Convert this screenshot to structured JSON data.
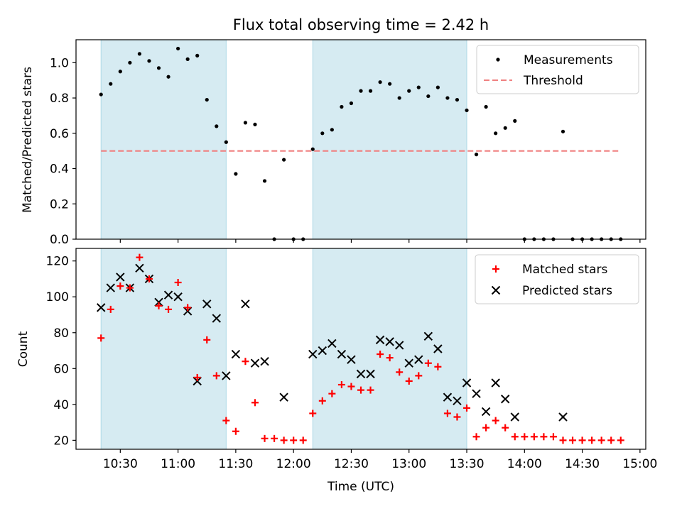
{
  "figure": {
    "title": "Flux total observing time = 2.42 h",
    "xlabel": "Time (UTC)"
  },
  "colors": {
    "shade": "#add8e6",
    "shade_opacity": 0.5,
    "threshold": "#f08080",
    "matched": "#ff0000",
    "predicted": "#000000",
    "measurement": "#000000"
  },
  "chart_data": [
    {
      "type": "scatter",
      "panel": "top",
      "ylabel": "Matched/Predicted stars",
      "xlim": [
        "10:07",
        "15:03"
      ],
      "ylim": [
        0,
        1.13
      ],
      "yticks": [
        0.0,
        0.2,
        0.4,
        0.6,
        0.8,
        1.0
      ],
      "ytick_labels": [
        "0.0",
        "0.2",
        "0.4",
        "0.6",
        "0.8",
        "1.0"
      ],
      "legend_position": "top-right",
      "shaded_intervals": [
        [
          "10:20",
          "11:25"
        ],
        [
          "12:10",
          "13:30"
        ]
      ],
      "series": [
        {
          "name": "Measurements",
          "kind": "points",
          "x": [
            "10:20",
            "10:25",
            "10:30",
            "10:35",
            "10:40",
            "10:45",
            "10:50",
            "10:55",
            "11:00",
            "11:05",
            "11:10",
            "11:15",
            "11:20",
            "11:25",
            "11:30",
            "11:35",
            "11:40",
            "11:45",
            "11:50",
            "11:55",
            "12:00",
            "12:05",
            "12:10",
            "12:15",
            "12:20",
            "12:25",
            "12:30",
            "12:35",
            "12:40",
            "12:45",
            "12:50",
            "12:55",
            "13:00",
            "13:05",
            "13:10",
            "13:15",
            "13:20",
            "13:25",
            "13:30",
            "13:35",
            "13:40",
            "13:45",
            "13:50",
            "13:55",
            "14:00",
            "14:05",
            "14:10",
            "14:15",
            "14:20",
            "14:25",
            "14:30",
            "14:35",
            "14:40",
            "14:45",
            "14:50"
          ],
          "y": [
            0.82,
            0.88,
            0.95,
            1.0,
            1.05,
            1.01,
            0.97,
            0.92,
            1.08,
            1.02,
            1.04,
            0.79,
            0.64,
            0.55,
            0.37,
            0.66,
            0.65,
            0.33,
            0.0,
            0.45,
            0.0,
            0.0,
            0.51,
            0.6,
            0.62,
            0.75,
            0.77,
            0.84,
            0.84,
            0.89,
            0.88,
            0.8,
            0.84,
            0.86,
            0.81,
            0.86,
            0.8,
            0.79,
            0.73,
            0.48,
            0.75,
            0.6,
            0.63,
            0.67,
            0.0,
            0.0,
            0.0,
            0.0,
            0.61,
            0.0,
            0.0,
            0.0,
            0.0,
            0.0,
            0.0
          ]
        },
        {
          "name": "Threshold",
          "kind": "dashed-line",
          "x": [
            "10:20",
            "14:50"
          ],
          "y": [
            0.5,
            0.5
          ]
        }
      ]
    },
    {
      "type": "scatter",
      "panel": "bottom",
      "ylabel": "Count",
      "xlim": [
        "10:07",
        "15:03"
      ],
      "ylim": [
        15,
        127
      ],
      "yticks": [
        20,
        40,
        60,
        80,
        100,
        120
      ],
      "ytick_labels": [
        "20",
        "40",
        "60",
        "80",
        "100",
        "120"
      ],
      "xticks": [
        "10:30",
        "11:00",
        "11:30",
        "12:00",
        "12:30",
        "13:00",
        "13:30",
        "14:00",
        "14:30",
        "15:00"
      ],
      "xtick_labels": [
        "10:30",
        "11:00",
        "11:30",
        "12:00",
        "12:30",
        "13:00",
        "13:30",
        "14:00",
        "14:30",
        "15:00"
      ],
      "legend_position": "top-right",
      "shaded_intervals": [
        [
          "10:20",
          "11:25"
        ],
        [
          "12:10",
          "13:30"
        ]
      ],
      "series": [
        {
          "name": "Matched stars",
          "marker": "plus",
          "x": [
            "10:20",
            "10:25",
            "10:30",
            "10:35",
            "10:40",
            "10:45",
            "10:50",
            "10:55",
            "11:00",
            "11:05",
            "11:10",
            "11:15",
            "11:20",
            "11:25",
            "11:30",
            "11:35",
            "11:40",
            "11:45",
            "11:50",
            "11:55",
            "12:00",
            "12:05",
            "12:10",
            "12:15",
            "12:20",
            "12:25",
            "12:30",
            "12:35",
            "12:40",
            "12:45",
            "12:50",
            "12:55",
            "13:00",
            "13:05",
            "13:10",
            "13:15",
            "13:20",
            "13:25",
            "13:30",
            "13:35",
            "13:40",
            "13:45",
            "13:50",
            "13:55",
            "14:00",
            "14:05",
            "14:10",
            "14:15",
            "14:20",
            "14:25",
            "14:30",
            "14:35",
            "14:40",
            "14:45",
            "14:50"
          ],
          "y": [
            77,
            93,
            106,
            105,
            122,
            110,
            95,
            93,
            108,
            94,
            55,
            76,
            56,
            31,
            25,
            64,
            41,
            21,
            21,
            20,
            20,
            20,
            35,
            42,
            46,
            51,
            50,
            48,
            48,
            68,
            66,
            58,
            53,
            56,
            63,
            61,
            35,
            33,
            38,
            22,
            27,
            31,
            27,
            22,
            22,
            22,
            22,
            22,
            20,
            20,
            20,
            20,
            20,
            20,
            20
          ]
        },
        {
          "name": "Predicted stars",
          "marker": "x",
          "x": [
            "10:20",
            "10:25",
            "10:30",
            "10:35",
            "10:40",
            "10:45",
            "10:50",
            "10:55",
            "11:00",
            "11:05",
            "11:10",
            "11:15",
            "11:20",
            "11:25",
            "11:30",
            "11:35",
            "11:40",
            "11:45",
            "11:55",
            "12:10",
            "12:15",
            "12:20",
            "12:25",
            "12:30",
            "12:35",
            "12:40",
            "12:45",
            "12:50",
            "12:55",
            "13:00",
            "13:05",
            "13:10",
            "13:15",
            "13:20",
            "13:25",
            "13:30",
            "13:35",
            "13:40",
            "13:45",
            "13:50",
            "13:55",
            "14:20"
          ],
          "y": [
            94,
            105,
            111,
            105,
            116,
            110,
            97,
            101,
            100,
            92,
            53,
            96,
            88,
            56,
            68,
            96,
            63,
            64,
            44,
            68,
            70,
            74,
            68,
            65,
            57,
            57,
            76,
            75,
            73,
            63,
            65,
            78,
            71,
            44,
            42,
            52,
            46,
            36,
            52,
            43,
            33,
            33
          ]
        }
      ]
    }
  ]
}
